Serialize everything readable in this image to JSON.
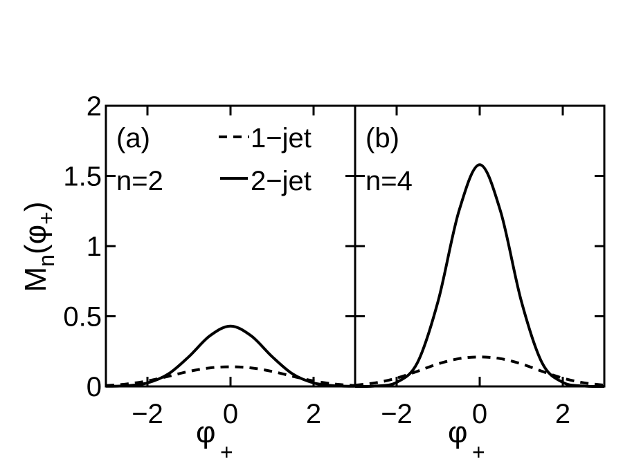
{
  "chart_data": [
    {
      "type": "line",
      "panel_label": "(a)",
      "annotation": "n=2",
      "xlim": [
        -3,
        3
      ],
      "ylim": [
        0,
        2
      ],
      "xticks": [
        -2,
        0,
        2
      ],
      "xtick_labels": [
        "−2",
        "0",
        "2"
      ],
      "yticks": [
        0,
        0.5,
        1,
        1.5,
        2
      ],
      "ytick_labels": [
        "0",
        "0.5",
        "1",
        "1.5",
        "2"
      ],
      "xlabel": {
        "main": "φ",
        "sub": "+"
      },
      "ylabel": {
        "main": "M",
        "sub": "n",
        "paren_open": "(φ",
        "paren_sub": "+",
        "paren_close": ")"
      },
      "legend": {
        "position": "top-right",
        "entries": [
          "1−jet",
          "2−jet"
        ]
      },
      "grid": false,
      "x": [
        -3.0,
        -2.5,
        -2.0,
        -1.5,
        -1.0,
        -0.5,
        0.0,
        0.5,
        1.0,
        1.5,
        2.0,
        2.5,
        3.0
      ],
      "series": [
        {
          "name": "1−jet",
          "style": "dashed",
          "values": [
            0.006,
            0.017,
            0.039,
            0.072,
            0.107,
            0.132,
            0.14,
            0.132,
            0.107,
            0.072,
            0.039,
            0.017,
            0.006
          ]
        },
        {
          "name": "2−jet",
          "style": "solid",
          "values": [
            0.001,
            0.005,
            0.025,
            0.088,
            0.213,
            0.36,
            0.43,
            0.36,
            0.213,
            0.088,
            0.025,
            0.005,
            0.001
          ]
        }
      ]
    },
    {
      "type": "line",
      "panel_label": "(b)",
      "annotation": "n=4",
      "xlim": [
        -3,
        3
      ],
      "ylim": [
        0,
        2
      ],
      "xticks": [
        -2,
        0,
        2
      ],
      "xtick_labels": [
        "−2",
        "0",
        "2"
      ],
      "yticks": [
        0,
        0.5,
        1,
        1.5,
        2
      ],
      "xlabel": {
        "main": "φ",
        "sub": "+"
      },
      "grid": false,
      "x": [
        -3.0,
        -2.5,
        -2.0,
        -1.5,
        -1.0,
        -0.5,
        0.0,
        0.5,
        1.0,
        1.5,
        2.0,
        2.5,
        3.0
      ],
      "series": [
        {
          "style": "dashed",
          "values": [
            0.009,
            0.026,
            0.059,
            0.108,
            0.161,
            0.198,
            0.21,
            0.198,
            0.161,
            0.108,
            0.059,
            0.026,
            0.009
          ]
        },
        {
          "style": "solid",
          "values": [
            0.0,
            0.003,
            0.029,
            0.169,
            0.61,
            1.25,
            1.58,
            1.25,
            0.61,
            0.169,
            0.029,
            0.003,
            0.0
          ]
        }
      ]
    }
  ]
}
